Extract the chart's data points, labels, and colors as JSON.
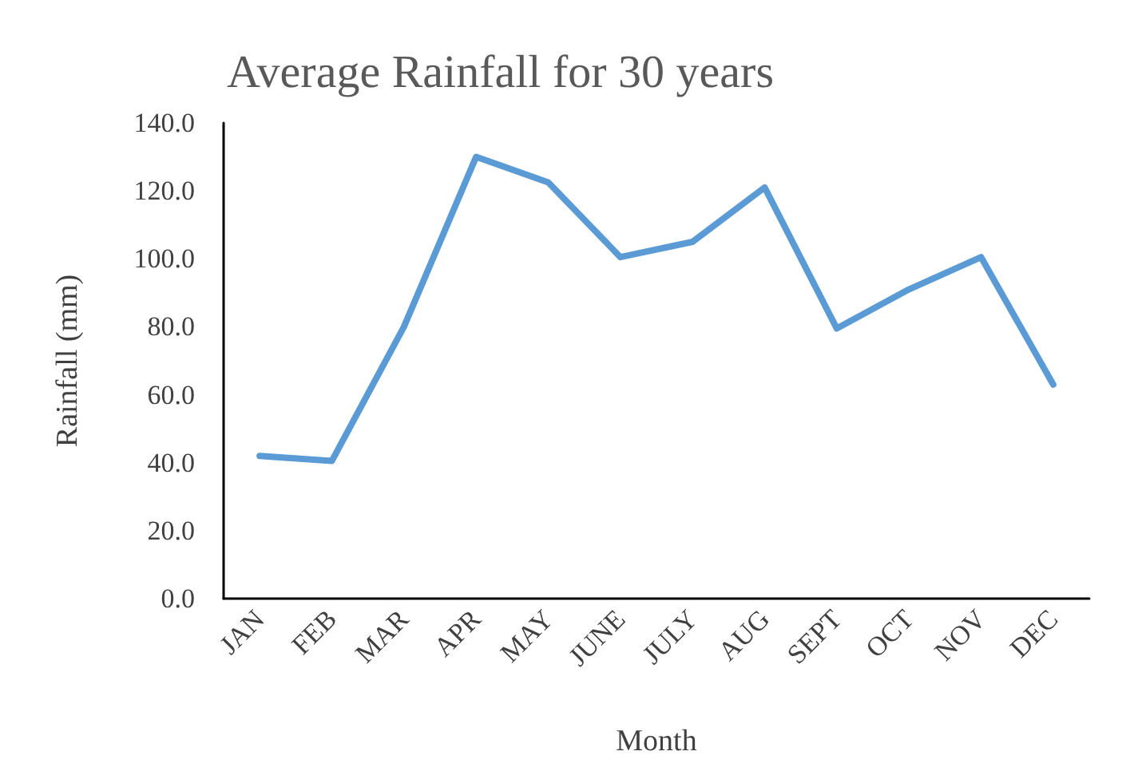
{
  "chart_data": {
    "type": "line",
    "title": "Average Rainfall for 30 years",
    "xlabel": "Month",
    "ylabel": "Rainfall (mm)",
    "categories": [
      "JAN",
      "FEB",
      "MAR",
      "APR",
      "MAY",
      "JUNE",
      "JULY",
      "AUG",
      "SEPT",
      "OCT",
      "NOV",
      "DEC"
    ],
    "series": [
      {
        "color": "#5b9bd5",
        "values": [
          42,
          40.5,
          80,
          130,
          122.5,
          100.5,
          105,
          121,
          79.5,
          91,
          100.5,
          63
        ]
      }
    ],
    "ylim": [
      0,
      140
    ],
    "yticks": [
      {
        "value": 0,
        "label": "0.0"
      },
      {
        "value": 20,
        "label": "20.0"
      },
      {
        "value": 40,
        "label": "40.0"
      },
      {
        "value": 60,
        "label": "60.0"
      },
      {
        "value": 80,
        "label": "80.0"
      },
      {
        "value": 100,
        "label": "100.0"
      },
      {
        "value": 120,
        "label": "120.0"
      },
      {
        "value": 140,
        "label": "140.0"
      }
    ],
    "grid": false,
    "marker": "none",
    "line_style": "solid"
  }
}
